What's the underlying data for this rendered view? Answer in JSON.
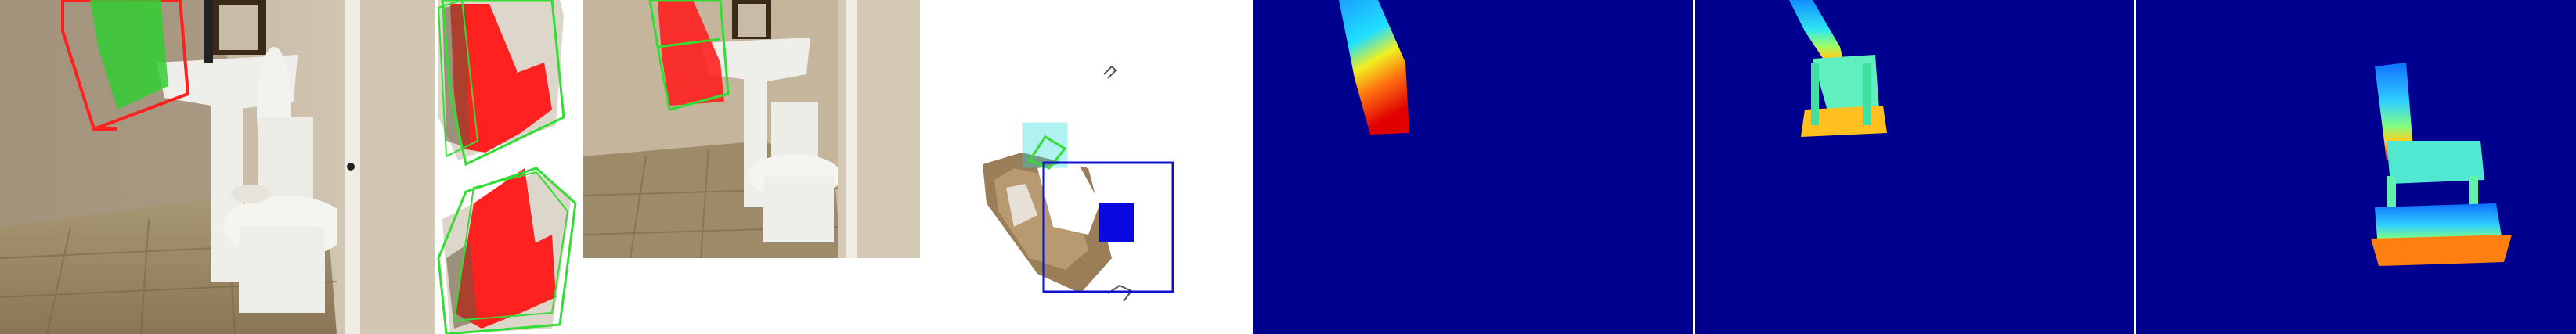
{
  "figure": {
    "panels": [
      {
        "id": "photo-bathroom",
        "kind": "rgb-photo"
      },
      {
        "id": "chair-crops",
        "kind": "rgb-crop-pair"
      },
      {
        "id": "photo-bathroom-2",
        "kind": "rgb-photo"
      },
      {
        "id": "point-cloud",
        "kind": "3d-view"
      },
      {
        "id": "depth-map-1",
        "kind": "depth-map"
      },
      {
        "id": "depth-map-2",
        "kind": "depth-map"
      },
      {
        "id": "depth-map-3",
        "kind": "depth-map"
      }
    ],
    "colors": {
      "box_red": "#ff2020",
      "box_green": "#33dd33",
      "box_cyan": "#20d8d8",
      "box_blue": "#1010d0",
      "depth_background": "#00008f",
      "separator": "#ffffff"
    }
  }
}
